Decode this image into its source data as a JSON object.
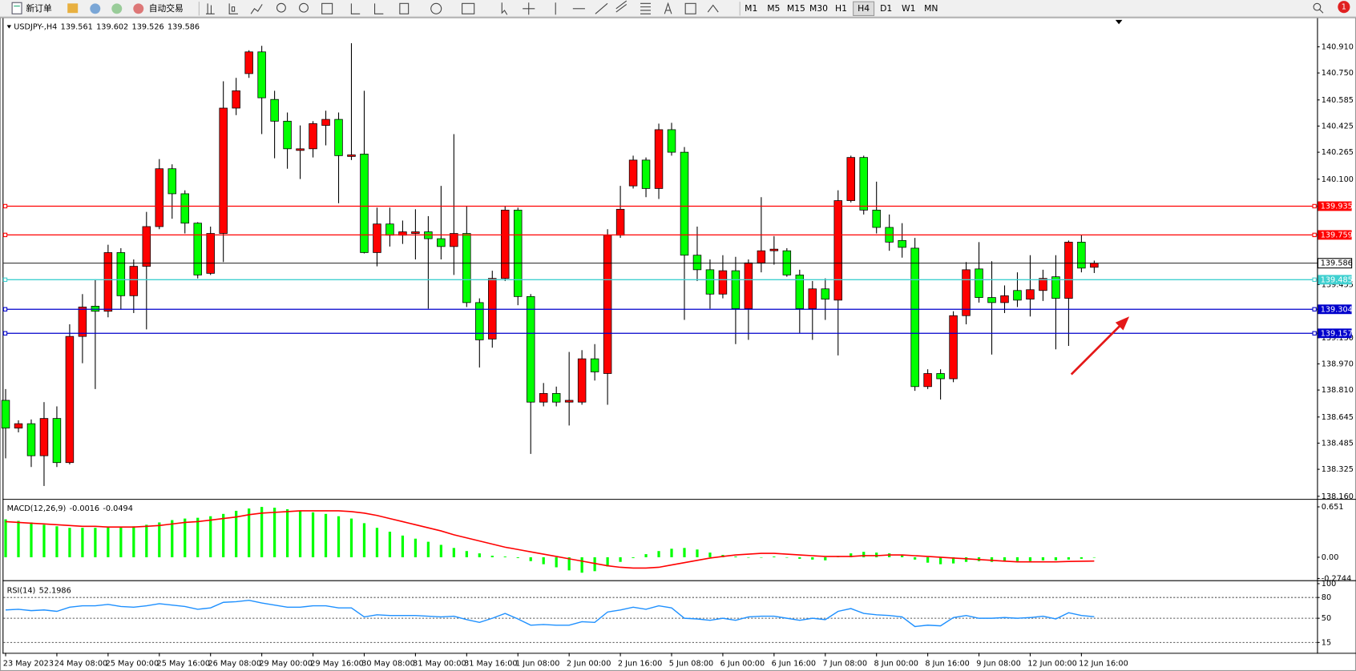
{
  "toolbar": {
    "new_order": "新订单",
    "auto_trading": "自动交易",
    "timeframes": [
      "M1",
      "M5",
      "M15",
      "M30",
      "H1",
      "H4",
      "D1",
      "W1",
      "MN"
    ],
    "active_timeframe": 5,
    "badge": 1
  },
  "chart_data": [
    {
      "type": "candlestick",
      "title": "USDJPY-,H4",
      "up_color": "#ff0000",
      "down_color": "#00ff00",
      "grid": false,
      "categories": [
        "23 May 2023",
        null,
        null,
        null,
        "24 May 08:00",
        null,
        null,
        null,
        "25 May 00:00",
        null,
        null,
        null,
        "25 May 16:00",
        null,
        null,
        null,
        "26 May 08:00",
        null,
        null,
        null,
        "29 May 00:00",
        null,
        null,
        null,
        "29 May 16:00",
        null,
        null,
        null,
        "30 May 08:00",
        null,
        null,
        null,
        "31 May 00:00",
        null,
        null,
        null,
        "31 May 16:00",
        null,
        null,
        null,
        "1 Jun 08:00",
        null,
        null,
        null,
        "2 Jun 00:00",
        null,
        null,
        null,
        "2 Jun 16:00",
        null,
        null,
        null,
        "5 Jun 08:00",
        null,
        null,
        null,
        "6 Jun 00:00",
        null,
        null,
        null,
        "6 Jun 16:00",
        null,
        null,
        null,
        "7 Jun 08:00",
        null,
        null,
        null,
        "8 Jun 00:00",
        null,
        null,
        null,
        "8 Jun 16:00",
        null,
        null,
        null,
        "9 Jun 08:00",
        null,
        null,
        null,
        "12 Jun 00:00",
        null,
        null,
        null,
        "12 Jun 16:00",
        null
      ],
      "open": [
        138.747,
        138.577,
        138.604,
        138.408,
        138.636,
        138.366,
        139.138,
        139.323,
        139.292,
        139.651,
        139.387,
        139.567,
        139.81,
        140.164,
        140.011,
        139.831,
        139.524,
        139.768,
        140.535,
        140.746,
        140.879,
        140.588,
        140.455,
        140.276,
        140.286,
        140.429,
        140.466,
        140.239,
        140.254,
        139.651,
        139.826,
        139.757,
        139.768,
        139.778,
        139.736,
        139.688,
        139.768,
        139.345,
        139.122,
        139.493,
        139.911,
        139.382,
        138.736,
        138.789,
        138.736,
        138.736,
        139.001,
        138.911,
        139.757,
        140.059,
        140.217,
        140.043,
        140.403,
        140.265,
        139.635,
        139.546,
        139.397,
        139.54,
        139.308,
        139.588,
        139.662,
        139.662,
        139.514,
        139.308,
        139.429,
        139.36,
        139.969,
        140.233,
        139.911,
        139.805,
        139.725,
        139.678,
        138.831,
        138.911,
        138.879,
        139.265,
        139.551,
        139.376,
        139.345,
        139.419,
        139.366,
        139.419,
        139.503,
        139.371,
        139.715,
        139.561
      ],
      "high": [
        138.816,
        138.625,
        138.63,
        138.736,
        138.71,
        139.212,
        139.397,
        139.487,
        139.699,
        139.678,
        139.609,
        139.9,
        140.223,
        140.191,
        140.032,
        139.837,
        139.81,
        140.699,
        140.72,
        140.889,
        140.916,
        140.641,
        140.508,
        140.429,
        140.455,
        140.519,
        140.508,
        140.932,
        140.641,
        139.926,
        139.926,
        139.847,
        139.916,
        139.874,
        140.059,
        140.376,
        139.937,
        139.371,
        139.54,
        139.937,
        139.926,
        139.397,
        138.853,
        138.831,
        139.043,
        139.054,
        139.091,
        139.794,
        140.059,
        140.244,
        140.233,
        140.44,
        140.445,
        140.297,
        139.81,
        139.609,
        139.635,
        139.625,
        139.609,
        139.99,
        139.752,
        139.678,
        139.546,
        139.477,
        139.493,
        140.032,
        140.244,
        140.244,
        140.085,
        139.884,
        139.831,
        139.741,
        138.937,
        138.937,
        139.292,
        139.593,
        139.715,
        139.598,
        139.45,
        139.53,
        139.635,
        139.546,
        139.635,
        139.725,
        139.757,
        139.602
      ],
      "low": [
        138.392,
        138.551,
        138.339,
        138.223,
        138.339,
        138.355,
        138.974,
        138.816,
        139.255,
        139.302,
        139.281,
        139.181,
        139.794,
        139.858,
        139.768,
        139.493,
        139.514,
        139.593,
        140.492,
        140.72,
        140.376,
        140.228,
        140.164,
        140.101,
        140.233,
        140.307,
        139.953,
        140.217,
        139.646,
        139.567,
        139.688,
        139.704,
        139.609,
        139.308,
        139.609,
        139.514,
        139.318,
        138.948,
        139.069,
        139.477,
        139.329,
        138.419,
        138.71,
        138.71,
        138.593,
        138.72,
        138.868,
        138.72,
        139.741,
        140.043,
        139.99,
        139.979,
        140.244,
        139.239,
        139.477,
        139.308,
        139.371,
        139.091,
        139.117,
        139.53,
        139.577,
        139.503,
        139.159,
        139.117,
        139.239,
        139.022,
        139.958,
        139.884,
        139.768,
        139.662,
        139.62,
        138.805,
        138.816,
        138.752,
        138.858,
        139.212,
        139.345,
        139.027,
        139.281,
        139.318,
        139.26,
        139.355,
        139.059,
        139.08,
        139.53,
        139.526
      ],
      "close": [
        138.577,
        138.604,
        138.408,
        138.636,
        138.366,
        139.138,
        139.318,
        139.292,
        139.651,
        139.387,
        139.567,
        139.81,
        140.164,
        140.011,
        139.831,
        139.514,
        139.768,
        140.535,
        140.641,
        140.879,
        140.598,
        140.455,
        140.286,
        140.286,
        140.44,
        140.466,
        140.244,
        140.249,
        139.651,
        139.826,
        139.757,
        139.778,
        139.778,
        139.736,
        139.688,
        139.768,
        139.345,
        139.117,
        139.493,
        139.911,
        139.382,
        138.736,
        138.789,
        138.736,
        138.747,
        139.001,
        138.921,
        139.757,
        139.916,
        140.217,
        140.043,
        140.403,
        140.265,
        139.635,
        139.546,
        139.397,
        139.54,
        139.308,
        139.588,
        139.662,
        139.672,
        139.514,
        139.308,
        139.429,
        139.366,
        139.969,
        140.233,
        139.911,
        139.805,
        139.715,
        139.683,
        138.831,
        138.911,
        138.879,
        139.265,
        139.546,
        139.376,
        139.345,
        139.387,
        139.36,
        139.424,
        139.493,
        139.371,
        139.715,
        139.556,
        139.586
      ],
      "ylim": [
        138.149,
        141.08
      ],
      "yticks": [
        {
          "value": 140.91,
          "label": "140.910"
        },
        {
          "value": 140.75,
          "label": "140.750"
        },
        140.585,
        140.425,
        140.265,
        {
          "value": 140.1,
          "label": "140.100"
        },
        139.455,
        {
          "value": 139.13,
          "label": "139.130"
        },
        {
          "value": 138.97,
          "label": "138.970"
        },
        {
          "value": 138.81,
          "label": "138.810"
        },
        138.645,
        138.485,
        138.325,
        {
          "value": 138.16,
          "label": "138.160"
        }
      ],
      "bid_line_color": "#000000",
      "hlines": [
        {
          "value": 139.935,
          "color": "#ff0000"
        },
        {
          "value": 139.759,
          "color": "#ff0000"
        },
        {
          "value": 139.485,
          "color": "#40d0d0"
        },
        {
          "value": 139.304,
          "color": "#0000cc"
        },
        {
          "value": 139.157,
          "color": "#0000cc"
        }
      ]
    },
    {
      "type": "combo",
      "title": "MACD(12,26,9)",
      "grid": false,
      "ylim": [
        -0.2744,
        0.72
      ],
      "yticks": [
        0.651,
        {
          "value": 0,
          "label": "0.00"
        },
        -0.2744
      ],
      "series": [
        {
          "type": "bar",
          "color": "#00ff00",
          "values": [
            0.49,
            0.47,
            0.45,
            0.42,
            0.4,
            0.38,
            0.38,
            0.38,
            0.39,
            0.39,
            0.4,
            0.42,
            0.45,
            0.48,
            0.5,
            0.51,
            0.53,
            0.56,
            0.6,
            0.63,
            0.65,
            0.64,
            0.62,
            0.6,
            0.58,
            0.56,
            0.53,
            0.5,
            0.44,
            0.38,
            0.33,
            0.28,
            0.24,
            0.2,
            0.16,
            0.12,
            0.08,
            0.05,
            0.02,
            0.01,
            -0.01,
            -0.05,
            -0.09,
            -0.13,
            -0.17,
            -0.2,
            -0.18,
            -0.12,
            -0.06,
            -0.01,
            0.04,
            0.08,
            0.11,
            0.12,
            0.1,
            0.06,
            0.03,
            0.01,
            0,
            0,
            0.01,
            0,
            -0.02,
            -0.03,
            -0.04,
            0.01,
            0.05,
            0.07,
            0.06,
            0.05,
            0.03,
            -0.03,
            -0.07,
            -0.09,
            -0.08,
            -0.06,
            -0.05,
            -0.06,
            -0.05,
            -0.05,
            -0.05,
            -0.04,
            -0.04,
            -0.03,
            -0.02,
            -0.0016
          ]
        },
        {
          "type": "line",
          "color": "#ff0000",
          "values": [
            0.46,
            0.45,
            0.44,
            0.43,
            0.42,
            0.41,
            0.4,
            0.4,
            0.39,
            0.39,
            0.39,
            0.4,
            0.41,
            0.43,
            0.45,
            0.46,
            0.48,
            0.5,
            0.52,
            0.55,
            0.57,
            0.58,
            0.59,
            0.6,
            0.6,
            0.6,
            0.6,
            0.59,
            0.57,
            0.54,
            0.5,
            0.46,
            0.42,
            0.38,
            0.34,
            0.29,
            0.25,
            0.21,
            0.17,
            0.13,
            0.1,
            0.07,
            0.04,
            0.01,
            -0.02,
            -0.05,
            -0.08,
            -0.11,
            -0.13,
            -0.14,
            -0.14,
            -0.13,
            -0.1,
            -0.07,
            -0.04,
            -0.01,
            0.01,
            0.03,
            0.04,
            0.05,
            0.05,
            0.04,
            0.03,
            0.02,
            0.01,
            0.01,
            0.01,
            0.02,
            0.02,
            0.03,
            0.03,
            0.02,
            0.01,
            0,
            -0.01,
            -0.02,
            -0.03,
            -0.04,
            -0.05,
            -0.06,
            -0.06,
            -0.06,
            -0.06,
            -0.055,
            -0.052,
            -0.0494
          ]
        }
      ]
    },
    {
      "type": "line",
      "title": "RSI(14)",
      "color": "#1e90ff",
      "grid": "dashed",
      "ylim": [
        0,
        100
      ],
      "yticks": [
        100,
        80,
        50,
        15
      ],
      "values": [
        62,
        63,
        61,
        62,
        60,
        66,
        68,
        68,
        70,
        67,
        66,
        68,
        71,
        69,
        67,
        63,
        65,
        73,
        74,
        76,
        72,
        69,
        66,
        66,
        68,
        68,
        65,
        65,
        52,
        55,
        54,
        54,
        54,
        53,
        52,
        53,
        48,
        44,
        50,
        57,
        49,
        40,
        41,
        40,
        40,
        45,
        44,
        59,
        62,
        66,
        63,
        68,
        65,
        50,
        49,
        47,
        50,
        47,
        52,
        53,
        53,
        50,
        47,
        50,
        48,
        60,
        64,
        57,
        55,
        54,
        52,
        38,
        40,
        39,
        51,
        54,
        50,
        50,
        51,
        50,
        51,
        53,
        49,
        58,
        54,
        52.1986
      ]
    }
  ]
}
